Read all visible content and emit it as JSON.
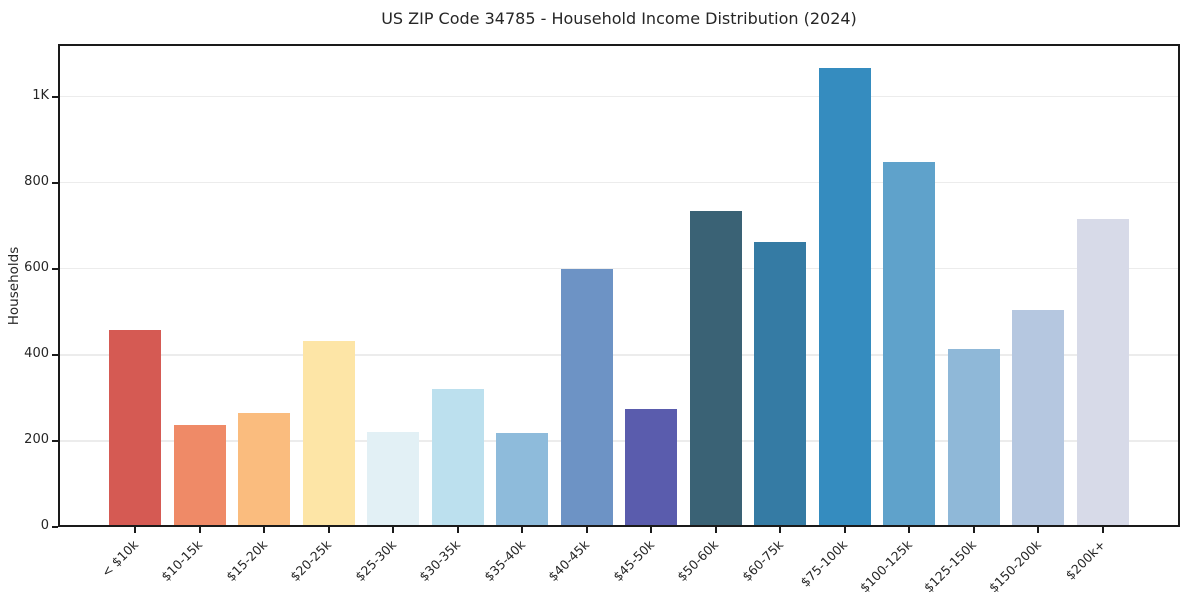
{
  "chart_data": {
    "type": "bar",
    "title": "US ZIP Code 34785 - Household Income Distribution (2024)",
    "xlabel": "",
    "ylabel": "Households",
    "categories": [
      "< $10k",
      "$10-15k",
      "$15-20k",
      "$20-25k",
      "$25-30k",
      "$30-35k",
      "$35-40k",
      "$40-45k",
      "$45-50k",
      "$50-60k",
      "$60-75k",
      "$75-100k",
      "$100-125k",
      "$125-150k",
      "$150-200k",
      "$200k+"
    ],
    "values": [
      458,
      236,
      264,
      432,
      220,
      321,
      219,
      600,
      274,
      734,
      663,
      1067,
      849,
      414,
      503,
      715
    ],
    "bar_colors": [
      "#d55a53",
      "#ef8a67",
      "#fabc7e",
      "#fde5a6",
      "#e2f0f5",
      "#bce0ee",
      "#8ebbdb",
      "#6d93c5",
      "#5a5cad",
      "#3a6275",
      "#357ba4",
      "#358cbf",
      "#5fa2cb",
      "#8fb8d8",
      "#b5c7e0",
      "#d7dae8"
    ],
    "ylim": [
      0,
      1122
    ],
    "yticks": [
      {
        "value": 0,
        "label": "0"
      },
      {
        "value": 200,
        "label": "200"
      },
      {
        "value": 400,
        "label": "400"
      },
      {
        "value": 600,
        "label": "600"
      },
      {
        "value": 800,
        "label": "800"
      },
      {
        "value": 1000,
        "label": "1K"
      }
    ],
    "grid": "horizontal",
    "legend": "none",
    "styles": {
      "background": "#ffffff",
      "grid_color": "#ececec",
      "spine_color": "#1a1a1a",
      "text_color": "#262626"
    }
  }
}
